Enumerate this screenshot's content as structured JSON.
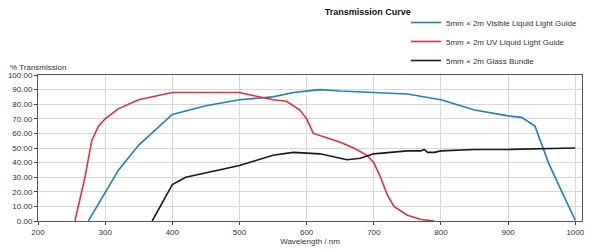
{
  "chart_data": {
    "type": "line",
    "title": "Transmission Curve",
    "x_label": "Wavelength / nm",
    "y_label": "% Transmission",
    "xlim": [
      200,
      1010
    ],
    "xticks": [
      200,
      300,
      400,
      500,
      600,
      700,
      800,
      900,
      1000
    ],
    "ylim": [
      0,
      100
    ],
    "yticks": [
      {
        "value": 0,
        "label": "0.00"
      },
      {
        "value": 10,
        "label": "10.00"
      },
      {
        "value": 20,
        "label": "20.00"
      },
      {
        "value": 30,
        "label": "30.00"
      },
      {
        "value": 40,
        "label": "40.00"
      },
      {
        "value": 50,
        "label": "50.00"
      },
      {
        "value": 60,
        "label": "60.00"
      },
      {
        "value": 70,
        "label": "70.00"
      },
      {
        "value": 80,
        "label": "80.00"
      },
      {
        "value": 90,
        "label": "90.00"
      },
      {
        "value": 100,
        "label": "100.00"
      }
    ],
    "grid": true,
    "legend": "top right",
    "series": [
      {
        "name": "5mm × 2m Visible Liquid Light Guide",
        "color": "#1f7fc0",
        "x": [
          275,
          300,
          320,
          350,
          380,
          400,
          450,
          500,
          550,
          580,
          620,
          650,
          700,
          750,
          800,
          850,
          900,
          920,
          940,
          960,
          980,
          1000
        ],
        "values": [
          0,
          20,
          35,
          52,
          65,
          73,
          79,
          83,
          85,
          88,
          90,
          89,
          88,
          87,
          83,
          76,
          72,
          71,
          65,
          40,
          20,
          0.5
        ]
      },
      {
        "name": "5mm × 2m UV Liquid Light Guide",
        "color": "#e0303c",
        "x": [
          255,
          270,
          280,
          290,
          300,
          320,
          350,
          380,
          400,
          450,
          500,
          520,
          550,
          570,
          590,
          600,
          610,
          630,
          650,
          670,
          690,
          700,
          710,
          720,
          730,
          750,
          770,
          790
        ],
        "values": [
          0,
          30,
          55,
          65,
          70,
          77,
          83,
          86,
          88,
          88,
          88,
          86,
          83,
          82,
          76,
          70,
          60,
          57,
          54,
          50,
          45,
          40,
          30,
          18,
          10,
          4,
          1,
          0
        ]
      },
      {
        "name": "5mm × 2m Glass Bundle",
        "color": "#1a1a1a",
        "x": [
          370,
          380,
          400,
          420,
          450,
          500,
          550,
          580,
          620,
          660,
          680,
          700,
          750,
          770,
          775,
          780,
          790,
          800,
          850,
          900,
          1000
        ],
        "values": [
          0,
          8,
          25,
          30,
          33,
          38,
          45,
          47,
          46,
          42,
          43,
          46,
          48,
          48,
          49,
          47,
          47,
          48,
          49,
          49,
          50
        ]
      }
    ]
  }
}
